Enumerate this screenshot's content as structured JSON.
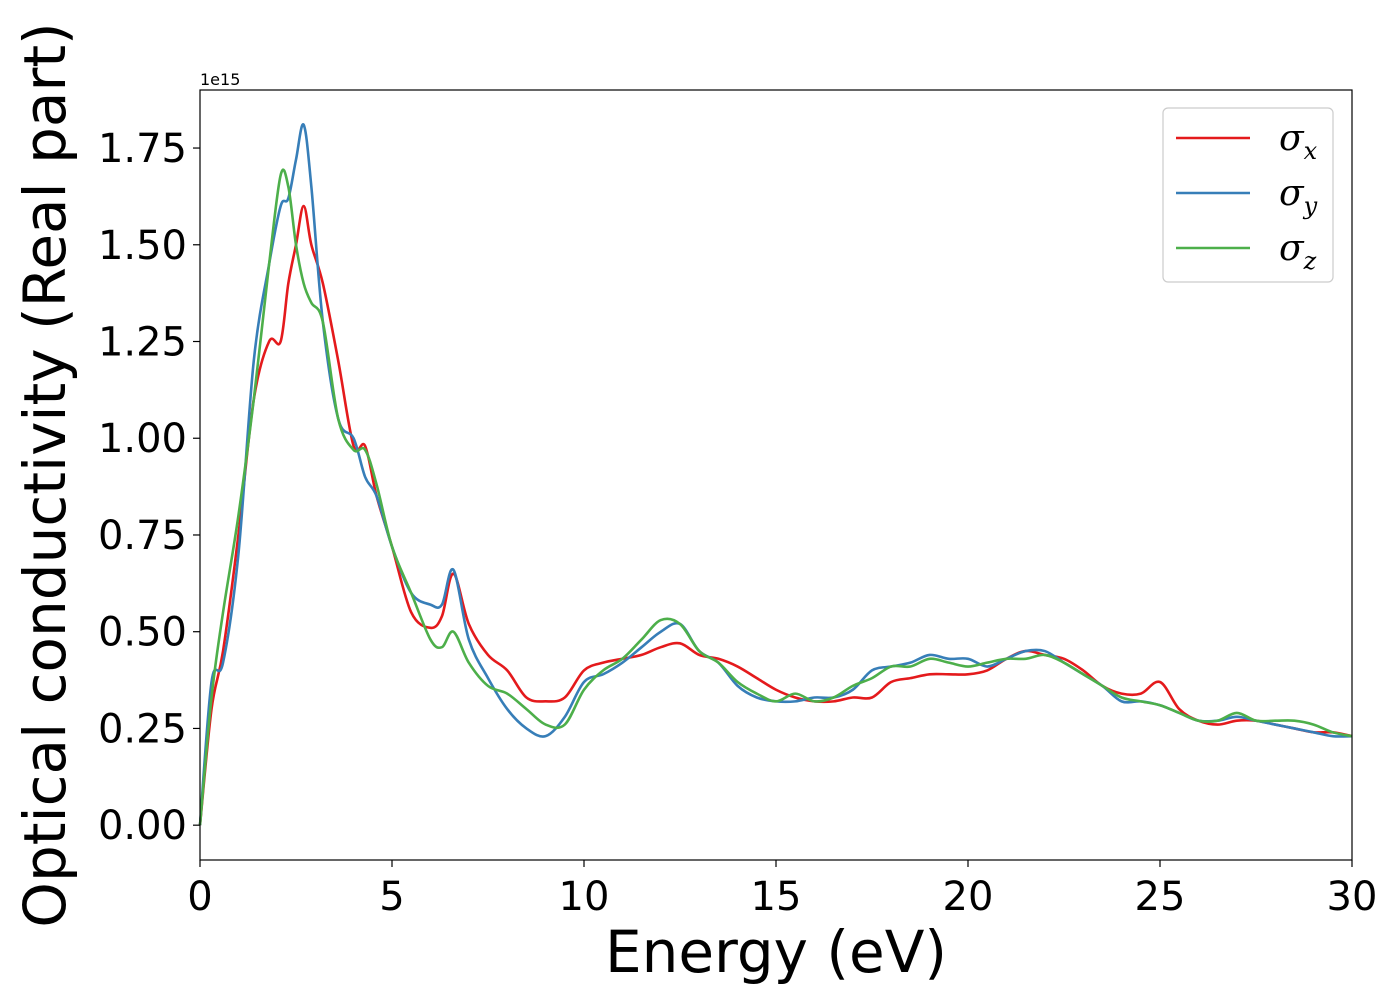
{
  "chart_data": {
    "type": "line",
    "title": "",
    "xlabel": "Energy (eV)",
    "ylabel": "Optical conductivity (Real part)",
    "y_offset_text": "1e15",
    "xlim": [
      0,
      30
    ],
    "ylim": [
      -0.09,
      1.9
    ],
    "xticks": [
      0,
      5,
      10,
      15,
      20,
      25,
      30
    ],
    "xtick_labels": [
      "0",
      "5",
      "10",
      "15",
      "20",
      "25",
      "30"
    ],
    "yticks": [
      0.0,
      0.25,
      0.5,
      0.75,
      1.0,
      1.25,
      1.5,
      1.75
    ],
    "ytick_labels": [
      "0.00",
      "0.25",
      "0.50",
      "0.75",
      "1.00",
      "1.25",
      "1.50",
      "1.75"
    ],
    "grid": false,
    "legend_position": "top-right",
    "series": [
      {
        "name": "σx",
        "symbol": "σ",
        "subscript": "x",
        "color": "#e41a1c",
        "x": [
          0,
          0.3,
          0.6,
          1.0,
          1.4,
          1.8,
          2.1,
          2.3,
          2.5,
          2.7,
          2.9,
          3.2,
          3.6,
          4.0,
          4.3,
          4.6,
          5.0,
          5.5,
          6.0,
          6.3,
          6.6,
          7.0,
          7.5,
          8.0,
          8.5,
          9.0,
          9.5,
          10.0,
          10.5,
          11.0,
          11.5,
          12.0,
          12.5,
          13.0,
          13.5,
          14.0,
          14.5,
          15.0,
          15.5,
          16.0,
          16.5,
          17.0,
          17.5,
          18.0,
          18.5,
          19.0,
          19.5,
          20.0,
          20.5,
          21.0,
          21.5,
          22.0,
          22.5,
          23.0,
          23.5,
          24.0,
          24.5,
          25.0,
          25.5,
          26.0,
          26.5,
          27.0,
          27.5,
          28.0,
          28.5,
          29.0,
          29.5,
          30.0
        ],
        "y": [
          0.0,
          0.3,
          0.45,
          0.75,
          1.1,
          1.25,
          1.25,
          1.4,
          1.5,
          1.6,
          1.5,
          1.4,
          1.2,
          0.98,
          0.98,
          0.85,
          0.72,
          0.55,
          0.51,
          0.54,
          0.65,
          0.52,
          0.44,
          0.4,
          0.33,
          0.32,
          0.33,
          0.4,
          0.42,
          0.43,
          0.44,
          0.46,
          0.47,
          0.44,
          0.43,
          0.41,
          0.38,
          0.35,
          0.33,
          0.32,
          0.32,
          0.33,
          0.33,
          0.37,
          0.38,
          0.39,
          0.39,
          0.39,
          0.4,
          0.43,
          0.45,
          0.44,
          0.43,
          0.4,
          0.36,
          0.34,
          0.34,
          0.37,
          0.3,
          0.27,
          0.26,
          0.27,
          0.27,
          0.26,
          0.25,
          0.24,
          0.24,
          0.23
        ]
      },
      {
        "name": "σy",
        "symbol": "σ",
        "subscript": "y",
        "color": "#377eb8",
        "x": [
          0,
          0.3,
          0.6,
          1.0,
          1.4,
          1.8,
          2.1,
          2.3,
          2.5,
          2.7,
          2.9,
          3.2,
          3.6,
          4.0,
          4.3,
          4.6,
          5.0,
          5.5,
          6.0,
          6.3,
          6.6,
          7.0,
          7.5,
          8.0,
          8.5,
          9.0,
          9.5,
          10.0,
          10.5,
          11.0,
          11.5,
          12.0,
          12.5,
          13.0,
          13.5,
          14.0,
          14.5,
          15.0,
          15.5,
          16.0,
          16.5,
          17.0,
          17.5,
          18.0,
          18.5,
          19.0,
          19.5,
          20.0,
          20.5,
          21.0,
          21.5,
          22.0,
          22.5,
          23.0,
          23.5,
          24.0,
          24.5,
          25.0,
          25.5,
          26.0,
          26.5,
          27.0,
          27.5,
          28.0,
          28.5,
          29.0,
          29.5,
          30.0
        ],
        "y": [
          0.0,
          0.37,
          0.42,
          0.7,
          1.2,
          1.45,
          1.6,
          1.62,
          1.72,
          1.81,
          1.65,
          1.3,
          1.05,
          1.0,
          0.9,
          0.85,
          0.72,
          0.6,
          0.57,
          0.57,
          0.66,
          0.48,
          0.38,
          0.3,
          0.25,
          0.23,
          0.28,
          0.37,
          0.39,
          0.42,
          0.46,
          0.5,
          0.52,
          0.45,
          0.42,
          0.36,
          0.33,
          0.32,
          0.32,
          0.33,
          0.33,
          0.35,
          0.4,
          0.41,
          0.42,
          0.44,
          0.43,
          0.43,
          0.41,
          0.43,
          0.45,
          0.45,
          0.42,
          0.39,
          0.36,
          0.32,
          0.32,
          0.31,
          0.29,
          0.27,
          0.27,
          0.28,
          0.27,
          0.26,
          0.25,
          0.24,
          0.23,
          0.23
        ]
      },
      {
        "name": "σz",
        "symbol": "σ",
        "subscript": "z",
        "color": "#4daf4a",
        "x": [
          0,
          0.3,
          0.6,
          1.0,
          1.4,
          1.8,
          2.1,
          2.3,
          2.5,
          2.7,
          2.9,
          3.2,
          3.6,
          4.0,
          4.3,
          4.6,
          5.0,
          5.5,
          6.0,
          6.3,
          6.6,
          7.0,
          7.5,
          8.0,
          8.5,
          9.0,
          9.5,
          10.0,
          10.5,
          11.0,
          11.5,
          12.0,
          12.5,
          13.0,
          13.5,
          14.0,
          14.5,
          15.0,
          15.5,
          16.0,
          16.5,
          17.0,
          17.5,
          18.0,
          18.5,
          19.0,
          19.5,
          20.0,
          20.5,
          21.0,
          21.5,
          22.0,
          22.5,
          23.0,
          23.5,
          24.0,
          24.5,
          25.0,
          25.5,
          26.0,
          26.5,
          27.0,
          27.5,
          28.0,
          28.5,
          29.0,
          29.5,
          30.0
        ],
        "y": [
          0.0,
          0.33,
          0.55,
          0.8,
          1.1,
          1.45,
          1.68,
          1.65,
          1.5,
          1.4,
          1.35,
          1.3,
          1.05,
          0.97,
          0.97,
          0.88,
          0.72,
          0.6,
          0.48,
          0.46,
          0.5,
          0.42,
          0.36,
          0.34,
          0.3,
          0.26,
          0.26,
          0.35,
          0.4,
          0.43,
          0.48,
          0.53,
          0.52,
          0.45,
          0.42,
          0.37,
          0.34,
          0.32,
          0.34,
          0.32,
          0.33,
          0.36,
          0.38,
          0.41,
          0.41,
          0.43,
          0.42,
          0.41,
          0.42,
          0.43,
          0.43,
          0.44,
          0.42,
          0.39,
          0.36,
          0.33,
          0.32,
          0.31,
          0.29,
          0.27,
          0.27,
          0.29,
          0.27,
          0.27,
          0.27,
          0.26,
          0.24,
          0.23
        ]
      }
    ]
  }
}
